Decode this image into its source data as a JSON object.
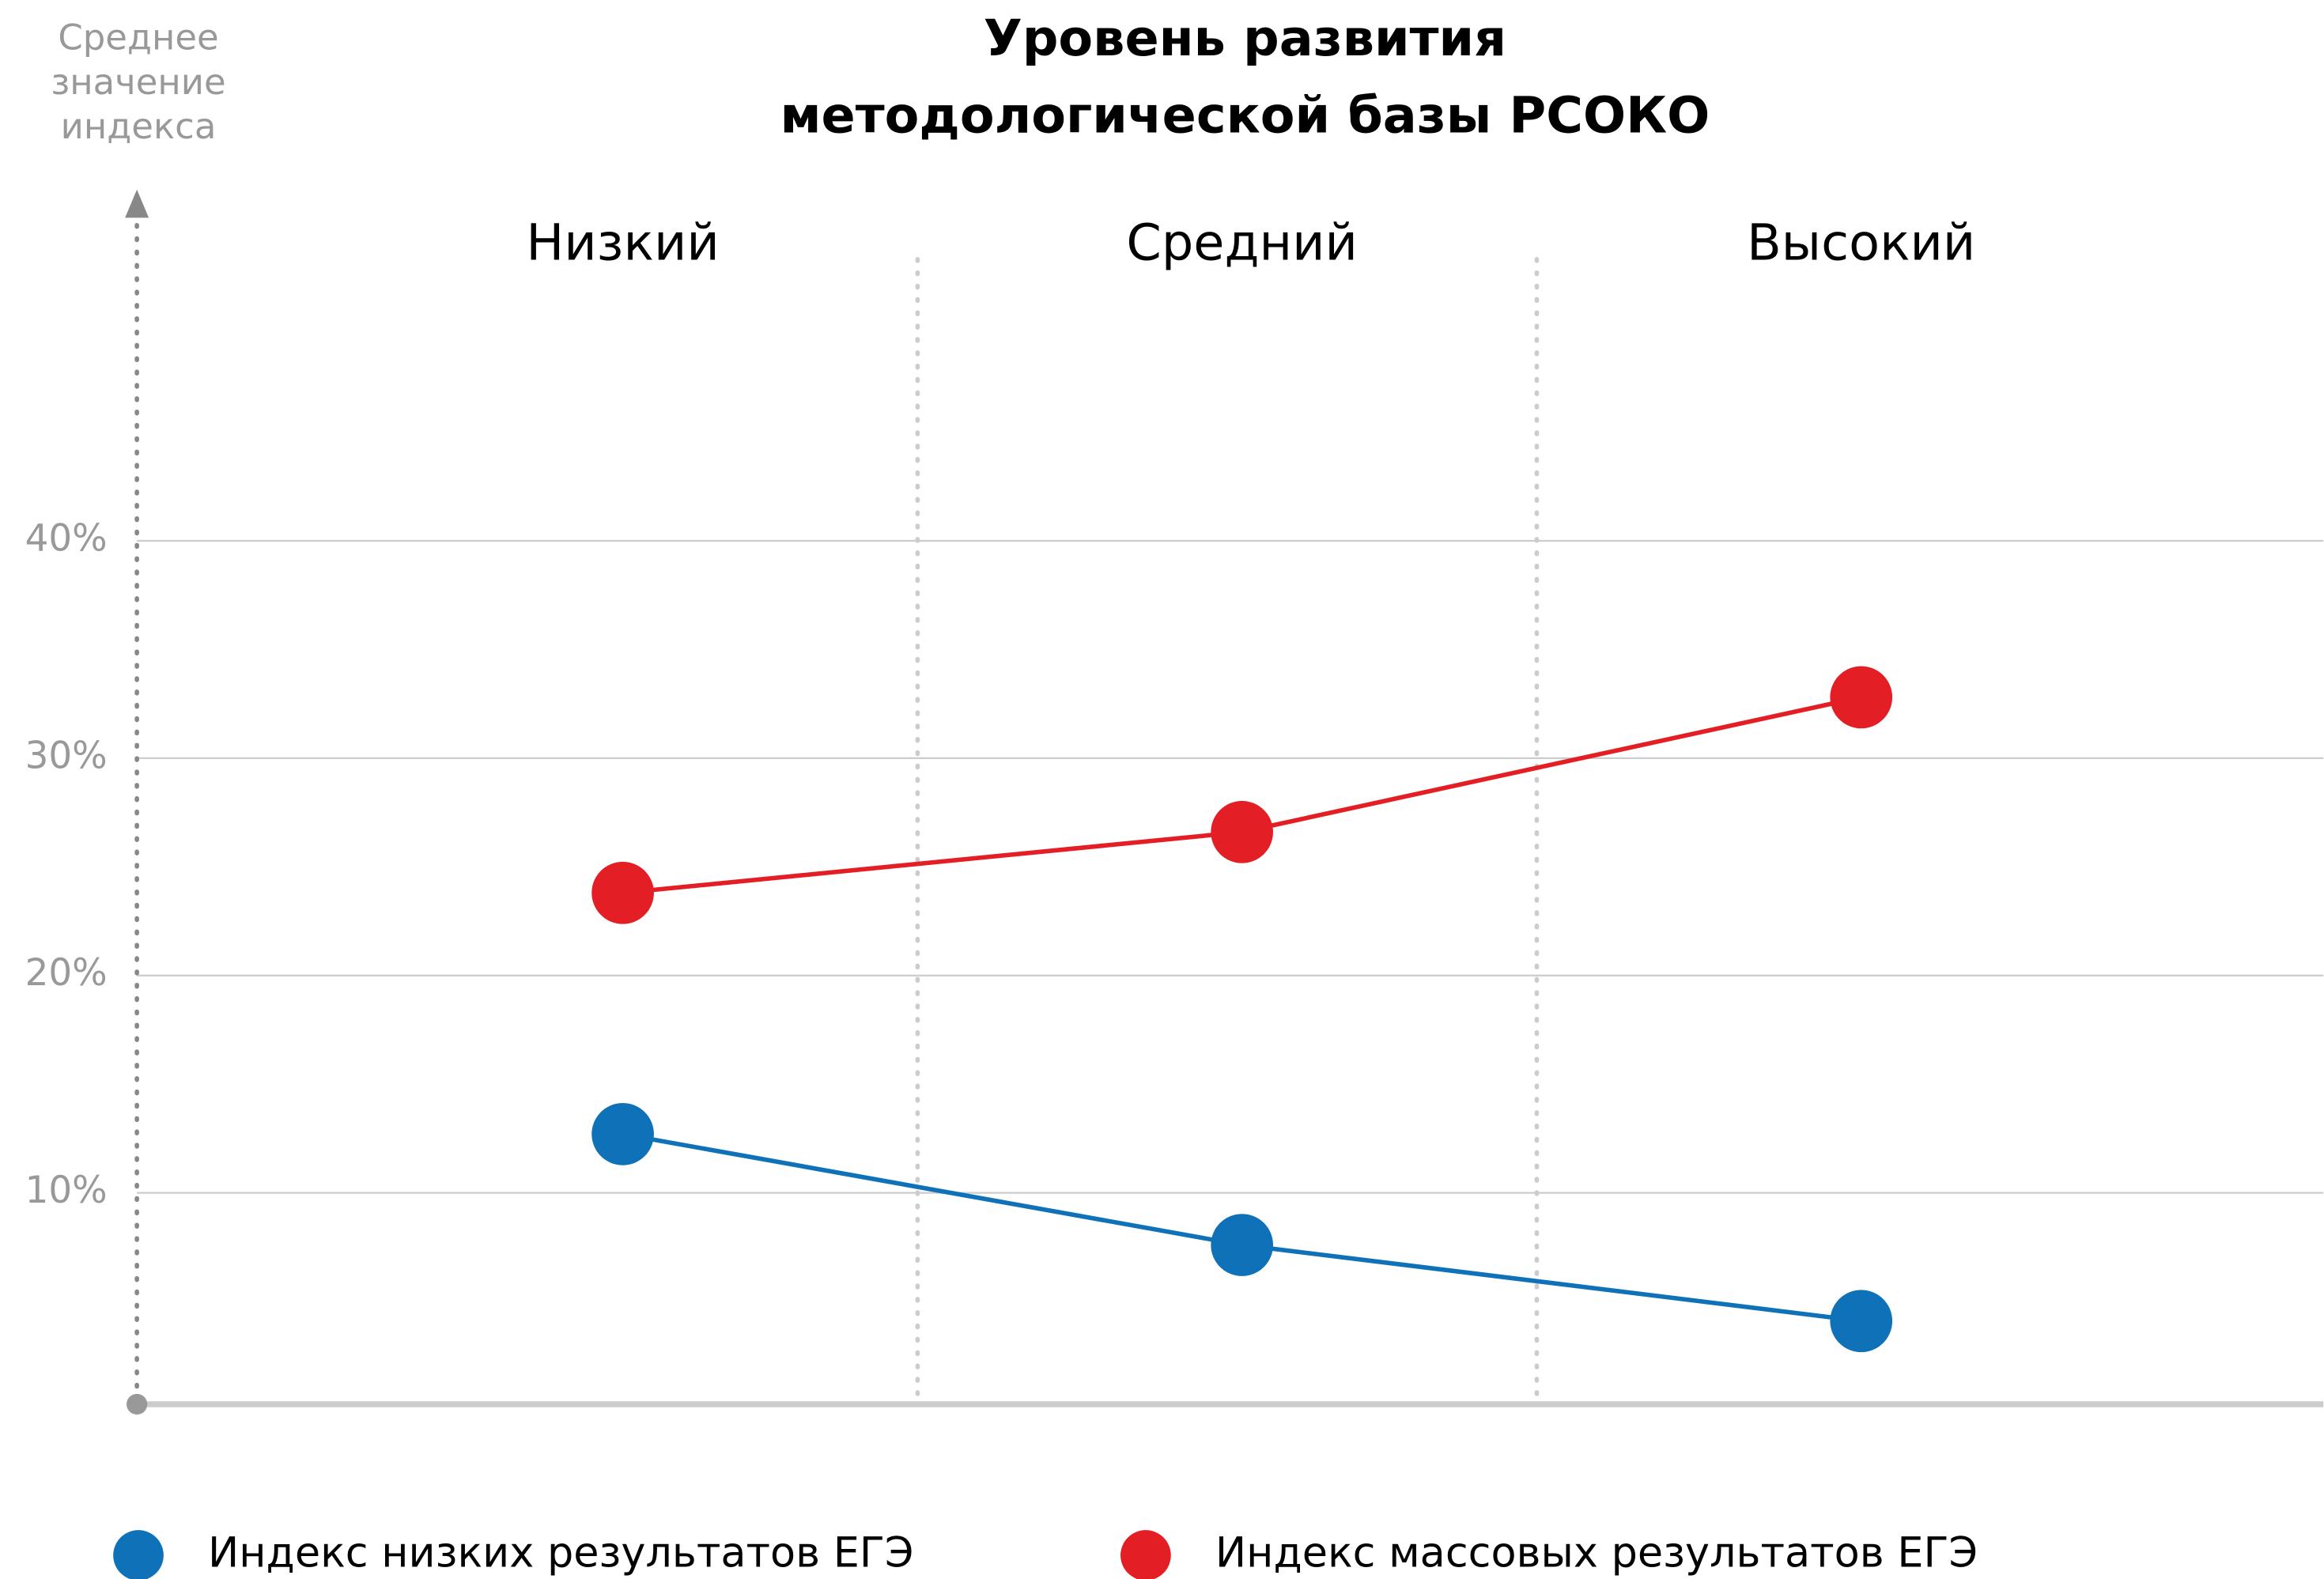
{
  "chart_data": {
    "type": "line",
    "title": [
      "Уровень развития",
      "методологической базы РСОКО"
    ],
    "y_label": [
      "Среднее",
      "значение",
      "индекса"
    ],
    "categories": [
      "Низкий",
      "Средний",
      "Высокий"
    ],
    "series": [
      {
        "name": "Индекс низких результатов ЕГЭ",
        "color": "#0f72b8",
        "values": [
          12.7,
          7.6,
          4.1
        ]
      },
      {
        "name": "Индекс массовых результатов ЕГЭ",
        "color": "#e31e24",
        "values": [
          23.8,
          26.6,
          32.8
        ]
      }
    ],
    "ylim": [
      0,
      55
    ],
    "yticks": [
      {
        "value": 10,
        "label": "10%"
      },
      {
        "value": 20,
        "label": "20%"
      },
      {
        "value": 30,
        "label": "30%"
      },
      {
        "value": 40,
        "label": "40%"
      }
    ],
    "grid": true
  }
}
